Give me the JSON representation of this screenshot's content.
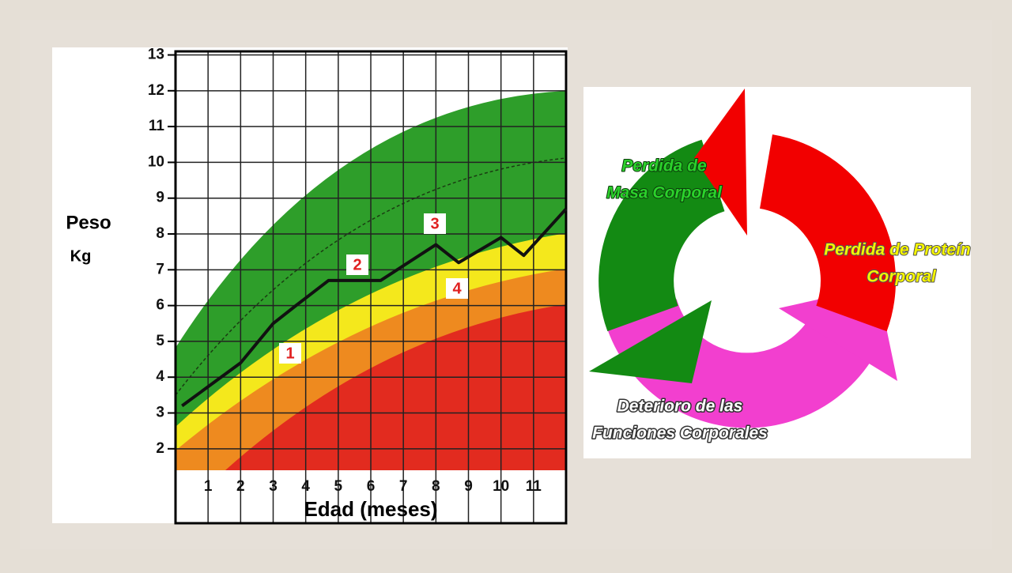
{
  "chart_data": {
    "type": "line",
    "y_label": "Peso",
    "y_unit": "Kg",
    "x_label": "Edad (meses)",
    "x": [
      0.2,
      1.1,
      2.0,
      3.0,
      3.7,
      4.7,
      5.3,
      6.3,
      8.0,
      8.7,
      10.0,
      10.7,
      12.0
    ],
    "series": [
      {
        "color": "#111111",
        "values": [
          3.2,
          3.8,
          4.4,
          5.5,
          6.0,
          6.7,
          6.7,
          6.7,
          7.7,
          7.2,
          7.9,
          7.4,
          8.7
        ]
      }
    ],
    "xlim": [
      0,
      12
    ],
    "xticks": [
      1,
      2,
      3,
      4,
      5,
      6,
      7,
      8,
      9,
      10,
      11
    ],
    "ylim": [
      1.4,
      13.1
    ],
    "yticks": [
      2,
      3,
      4,
      5,
      6,
      7,
      8,
      9,
      10,
      11,
      12,
      13
    ],
    "grid": true,
    "annotations": [
      "1",
      "2",
      "3",
      "4"
    ]
  },
  "diagram": {
    "mass_loss": [
      "Perdida de",
      "Masa Corporal"
    ],
    "protein_loss": [
      "Perdida de Proteín",
      "Corporal"
    ],
    "function_loss": [
      "Deterioro de las",
      "Funciones Corporales"
    ]
  }
}
